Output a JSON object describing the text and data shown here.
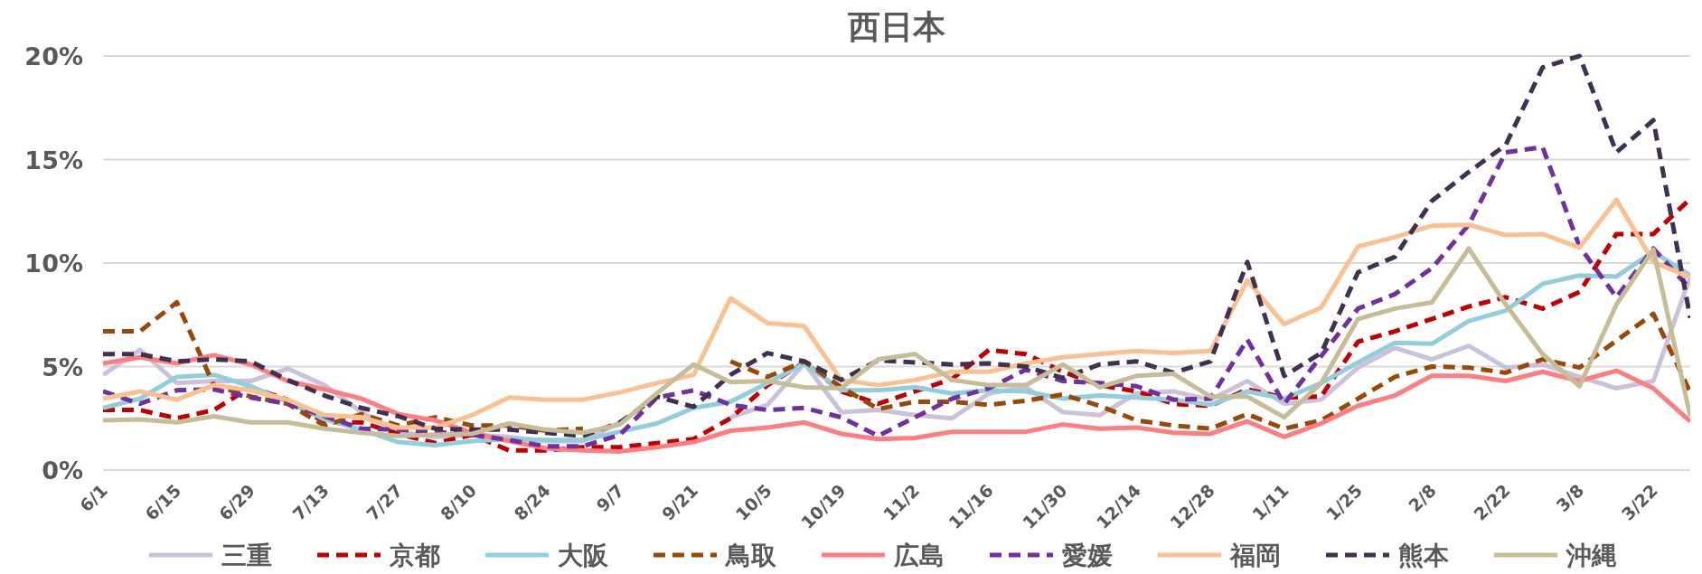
{
  "chart_data": {
    "type": "line",
    "title": "西日本",
    "categories": [
      "6/1",
      null,
      "6/15",
      null,
      "6/29",
      null,
      "7/13",
      null,
      "7/27",
      null,
      "8/10",
      null,
      "8/24",
      null,
      "9/7",
      null,
      "9/21",
      null,
      "10/5",
      null,
      "10/19",
      null,
      "11/2",
      null,
      "11/16",
      null,
      "11/30",
      null,
      "12/14",
      null,
      "12/28",
      null,
      "1/11",
      null,
      "1/25",
      null,
      "2/8",
      null,
      "2/22",
      null,
      "3/8",
      null,
      "3/22",
      null
    ],
    "ylim": [
      0,
      20
    ],
    "yticks": [
      {
        "value": 0,
        "label": "0%"
      },
      {
        "value": 5,
        "label": "5%"
      },
      {
        "value": 10,
        "label": "10%"
      },
      {
        "value": 15,
        "label": "15%"
      },
      {
        "value": 20,
        "label": "20%"
      }
    ],
    "grid": "y",
    "legend": "bottom",
    "series": [
      {
        "name": "三重",
        "color": "#ccc1da",
        "line_style": "solid",
        "values": [
          4.6,
          5.8,
          4.2,
          4.3,
          4.3,
          4.9,
          4.1,
          2.8,
          1.85,
          1.6,
          1.7,
          1.6,
          1.4,
          1.4,
          2.3,
          null,
          null,
          2.55,
          3.15,
          5.15,
          2.8,
          2.9,
          2.65,
          2.5,
          3.7,
          4.0,
          2.8,
          2.65,
          3.7,
          3.8,
          3.4,
          4.3,
          3.2,
          3.4,
          4.95,
          5.9,
          5.35,
          6.0,
          4.95,
          5.1,
          4.5,
          3.95,
          4.3,
          9.35
        ]
      },
      {
        "name": "京都",
        "color": "#c00000",
        "line_style": "dashed",
        "values": [
          2.9,
          2.9,
          2.5,
          2.9,
          4.0,
          3.4,
          2.3,
          2.3,
          1.75,
          1.3,
          1.7,
          0.95,
          0.95,
          1.1,
          1.1,
          1.3,
          1.5,
          2.5,
          4.1,
          5.2,
          3.8,
          3.2,
          3.8,
          4.4,
          5.8,
          5.6,
          4.75,
          4.1,
          3.8,
          3.2,
          3.1,
          3.9,
          3.5,
          3.55,
          6.2,
          6.7,
          7.3,
          7.9,
          8.35,
          7.8,
          8.6,
          11.4,
          11.4,
          13.1
        ]
      },
      {
        "name": "大阪",
        "color": "#92cddc",
        "line_style": "solid",
        "values": [
          3.0,
          3.45,
          4.5,
          4.6,
          4.05,
          3.3,
          2.45,
          1.95,
          1.35,
          1.2,
          1.4,
          1.5,
          1.45,
          1.45,
          1.85,
          2.25,
          3.0,
          3.3,
          4.2,
          5.15,
          3.85,
          3.85,
          4.0,
          3.7,
          3.85,
          3.8,
          3.45,
          3.6,
          3.5,
          3.4,
          3.15,
          3.8,
          3.45,
          4.2,
          5.2,
          6.15,
          6.1,
          7.2,
          7.7,
          9.0,
          9.4,
          9.35,
          10.55,
          9.4
        ]
      },
      {
        "name": "鳥取",
        "color": "#984807",
        "line_style": "dashed",
        "values": [
          6.7,
          6.7,
          8.1,
          4.1,
          3.55,
          3.2,
          2.15,
          2.7,
          2.15,
          2.55,
          2.15,
          2.15,
          1.9,
          2.0,
          null,
          null,
          null,
          5.25,
          4.5,
          5.25,
          4.0,
          2.95,
          3.3,
          3.3,
          3.15,
          3.35,
          3.65,
          3.1,
          2.4,
          2.15,
          2.0,
          2.7,
          2.0,
          2.4,
          3.45,
          4.5,
          5.0,
          4.95,
          4.7,
          5.35,
          4.95,
          6.25,
          7.55,
          3.75
        ]
      },
      {
        "name": "広島",
        "color": "#ff7c80",
        "line_style": "solid",
        "values": [
          5.15,
          5.45,
          5.15,
          5.55,
          5.1,
          4.3,
          3.9,
          3.45,
          2.7,
          2.4,
          1.8,
          1.4,
          1.05,
          0.95,
          0.9,
          1.1,
          1.35,
          1.9,
          2.05,
          2.3,
          1.75,
          1.5,
          1.55,
          1.85,
          1.85,
          1.85,
          2.2,
          2.0,
          2.05,
          1.8,
          1.75,
          2.35,
          1.6,
          2.25,
          3.1,
          3.6,
          4.55,
          4.55,
          4.3,
          4.75,
          4.3,
          4.8,
          3.95,
          2.35
        ]
      },
      {
        "name": "愛媛",
        "color": "#7030a0",
        "line_style": "dashed",
        "values": [
          3.8,
          3.2,
          3.85,
          3.9,
          3.5,
          3.2,
          2.6,
          2.0,
          1.95,
          1.85,
          1.7,
          1.45,
          1.15,
          1.15,
          1.7,
          3.5,
          3.85,
          3.15,
          2.9,
          3.0,
          2.55,
          1.65,
          2.55,
          3.45,
          3.95,
          4.85,
          4.3,
          4.2,
          4.05,
          3.4,
          3.45,
          6.3,
          3.2,
          5.5,
          7.8,
          8.5,
          9.75,
          11.85,
          15.35,
          15.6,
          10.8,
          8.35,
          10.7,
          8.75
        ]
      },
      {
        "name": "福岡",
        "color": "#fac090",
        "line_style": "solid",
        "values": [
          3.45,
          3.8,
          3.4,
          4.1,
          3.85,
          3.4,
          2.65,
          2.55,
          2.05,
          2.05,
          2.65,
          3.5,
          3.4,
          3.4,
          3.75,
          4.2,
          4.6,
          8.3,
          7.1,
          6.95,
          4.35,
          4.1,
          4.35,
          4.75,
          4.75,
          5.15,
          5.45,
          5.6,
          5.75,
          5.65,
          5.75,
          9.15,
          7.05,
          7.85,
          10.8,
          11.25,
          11.8,
          11.85,
          11.35,
          11.4,
          10.75,
          13.05,
          10.05,
          9.3
        ]
      },
      {
        "name": "熊本",
        "color": "#403151",
        "line_style": "dashed",
        "values": [
          5.6,
          5.6,
          5.25,
          5.35,
          5.25,
          4.35,
          3.6,
          3.0,
          2.6,
          2.0,
          1.95,
          1.95,
          1.8,
          1.65,
          2.3,
          3.55,
          3.05,
          4.6,
          5.65,
          5.25,
          4.35,
          5.3,
          5.2,
          5.1,
          5.15,
          5.0,
          4.45,
          5.1,
          5.25,
          4.7,
          5.25,
          10.05,
          4.55,
          5.65,
          9.55,
          10.3,
          13.0,
          14.4,
          15.7,
          19.45,
          20,
          15.35,
          16.9,
          7.35
        ]
      },
      {
        "name": "沖縄",
        "color": "#c4bd97",
        "line_style": "solid",
        "values": [
          2.4,
          2.45,
          2.3,
          2.6,
          2.3,
          2.3,
          2.0,
          1.8,
          1.65,
          1.7,
          1.75,
          2.25,
          1.95,
          1.8,
          2.2,
          3.7,
          5.1,
          4.25,
          4.3,
          4.0,
          3.95,
          5.35,
          5.6,
          4.35,
          4.1,
          4.1,
          5.1,
          4.0,
          4.55,
          4.65,
          3.55,
          3.55,
          2.55,
          4.2,
          7.3,
          7.8,
          8.1,
          10.7,
          8.0,
          5.6,
          4.05,
          8.0,
          10.65,
          2.6
        ]
      }
    ]
  }
}
